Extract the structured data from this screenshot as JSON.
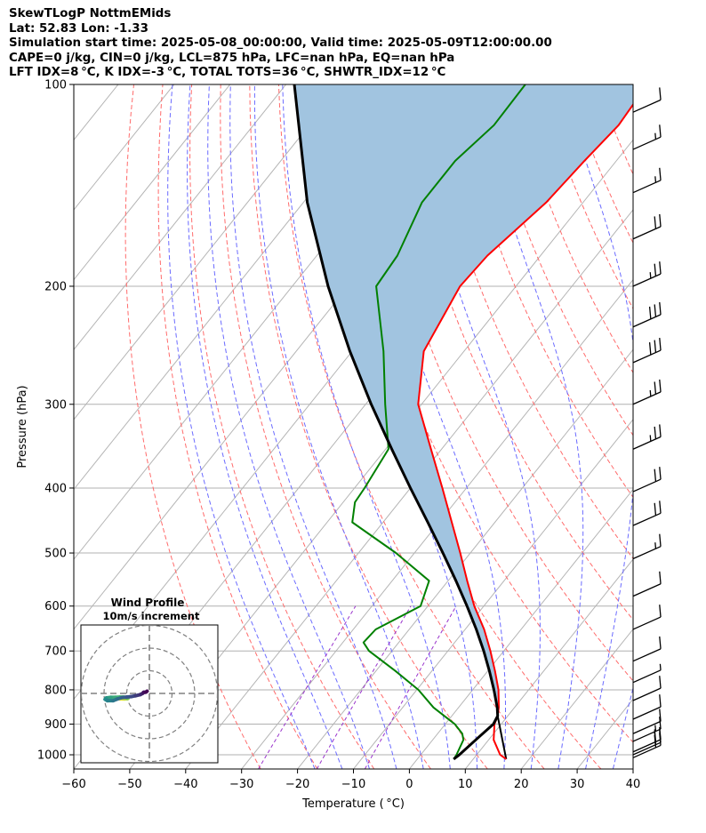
{
  "header": {
    "lines": [
      "SkewTLogP NottmEMids",
      "Lat: 52.83   Lon: -1.33",
      "Simulation start time: 2025-05-08_00:00:00, Valid time: 2025-05-09T12:00:00.00",
      "CAPE=0 j/kg, CIN=0 j/kg, LCL=875 hPa, LFC=nan hPa, EQ=nan hPa",
      "LFT IDX=8 °C, K IDX=-3 °C, TOTAL TOTS=36 °C, SHWTR_IDX=12 °C"
    ]
  },
  "chart_data": {
    "type": "line",
    "title": "SkewTLogP NottmEMids",
    "xlabel": "Temperature ( °C)",
    "ylabel": "Pressure (hPa)",
    "xlim": [
      -60,
      40
    ],
    "ylim": [
      1050,
      100
    ],
    "yscale": "log",
    "grid": true,
    "xticks": [
      -60,
      -50,
      -40,
      -30,
      -20,
      -10,
      0,
      10,
      20,
      30,
      40
    ],
    "yticks": [
      1000,
      900,
      800,
      700,
      600,
      500,
      400,
      300,
      200,
      100
    ],
    "colors": {
      "temperature": "#ff0000",
      "dewpoint": "#008000",
      "parcel": "#000000",
      "cape_fill": "#a1c4e0",
      "dry_adiabats": "#ff6b6b",
      "moist_adiabats": "#6b6bff",
      "mixing_ratio": "#9933cc",
      "isotherms": "#b3b3b3"
    },
    "series": [
      {
        "key": "temperature",
        "p": [
          1015,
          1000,
          950,
          900,
          875,
          850,
          800,
          750,
          700,
          650,
          600,
          550,
          500,
          450,
          400,
          350,
          300,
          250,
          200,
          180,
          150,
          130,
          115,
          100
        ],
        "t": [
          15.9,
          14.2,
          10.9,
          8.8,
          8.2,
          7.2,
          4.6,
          1.3,
          -2.4,
          -6.6,
          -11.7,
          -16.6,
          -21.8,
          -27.7,
          -34.3,
          -41.9,
          -50.6,
          -57.2,
          -60.0,
          -59.5,
          -56.6,
          -55.7,
          -54.7,
          -55.4
        ]
      },
      {
        "key": "dewpoint",
        "p": [
          1015,
          1000,
          950,
          930,
          900,
          850,
          800,
          750,
          700,
          680,
          650,
          600,
          550,
          500,
          450,
          420,
          400,
          350,
          300,
          250,
          200,
          180,
          150,
          130,
          115,
          100
        ],
        "t": [
          6.5,
          6.4,
          5.5,
          4.4,
          1.7,
          -4.5,
          -9.7,
          -16.5,
          -24.1,
          -26.3,
          -26.0,
          -21.3,
          -23.4,
          -33.3,
          -45.5,
          -47.9,
          -48.2,
          -49.5,
          -56.5,
          -64.4,
          -75.0,
          -75.6,
          -78.8,
          -78.8,
          -77.0,
          -77.2
        ]
      },
      {
        "key": "parcel",
        "p": [
          1015,
          1000,
          950,
          900,
          875,
          850,
          800,
          750,
          700,
          650,
          600,
          550,
          500,
          450,
          400,
          350,
          300,
          250,
          200,
          150,
          100
        ],
        "t": [
          6.5,
          6.9,
          7.7,
          8.6,
          8.2,
          6.9,
          3.8,
          0.3,
          -3.6,
          -8.0,
          -13.0,
          -18.6,
          -24.9,
          -32.0,
          -40.0,
          -48.9,
          -59.0,
          -70.4,
          -83.6,
          -99.3,
          -118.5
        ]
      }
    ],
    "parcel_from_surface": {
      "p": [
        1015,
        875
      ],
      "t": [
        15.9,
        8.2
      ]
    },
    "wind_barbs": [
      {
        "p": 1010,
        "speed_kt": 20
      },
      {
        "p": 1000,
        "speed_kt": 20
      },
      {
        "p": 990,
        "speed_kt": 20
      },
      {
        "p": 955,
        "speed_kt": 15
      },
      {
        "p": 930,
        "speed_kt": 10
      },
      {
        "p": 885,
        "speed_kt": 10
      },
      {
        "p": 830,
        "speed_kt": 10
      },
      {
        "p": 780,
        "speed_kt": 5
      },
      {
        "p": 725,
        "speed_kt": 10
      },
      {
        "p": 650,
        "speed_kt": 10
      },
      {
        "p": 580,
        "speed_kt": 10
      },
      {
        "p": 510,
        "speed_kt": 15
      },
      {
        "p": 455,
        "speed_kt": 20
      },
      {
        "p": 405,
        "speed_kt": 20
      },
      {
        "p": 350,
        "speed_kt": 25
      },
      {
        "p": 300,
        "speed_kt": 25
      },
      {
        "p": 260,
        "speed_kt": 30
      },
      {
        "p": 230,
        "speed_kt": 30
      },
      {
        "p": 200,
        "speed_kt": 25
      },
      {
        "p": 170,
        "speed_kt": 20
      },
      {
        "p": 145,
        "speed_kt": 15
      },
      {
        "p": 125,
        "speed_kt": 15
      },
      {
        "p": 110,
        "speed_kt": 10
      }
    ],
    "hodograph": {
      "title_lines": [
        "Wind Profile",
        "10m/s increment"
      ],
      "rings": [
        1,
        2,
        3
      ],
      "u": [
        -13,
        -12,
        -11,
        -10,
        -9.5,
        -9.5,
        -10,
        -11.5,
        -13,
        -15,
        -17,
        -19,
        -19.5,
        -18.5,
        -16,
        -14,
        -12,
        -10,
        -8,
        -6,
        -4,
        -3,
        -2.5,
        -1.5,
        -1
      ],
      "v": [
        -2.4,
        -2.4,
        -2.4,
        -2.3,
        -2.2,
        -2.0,
        -1.8,
        -1.6,
        -1.6,
        -1.7,
        -1.7,
        -2.0,
        -2.6,
        -3.2,
        -3.2,
        -2.4,
        -1.8,
        -1.6,
        -1.4,
        -1.0,
        -0.5,
        0.0,
        0.5,
        0.6,
        1.0
      ]
    }
  }
}
